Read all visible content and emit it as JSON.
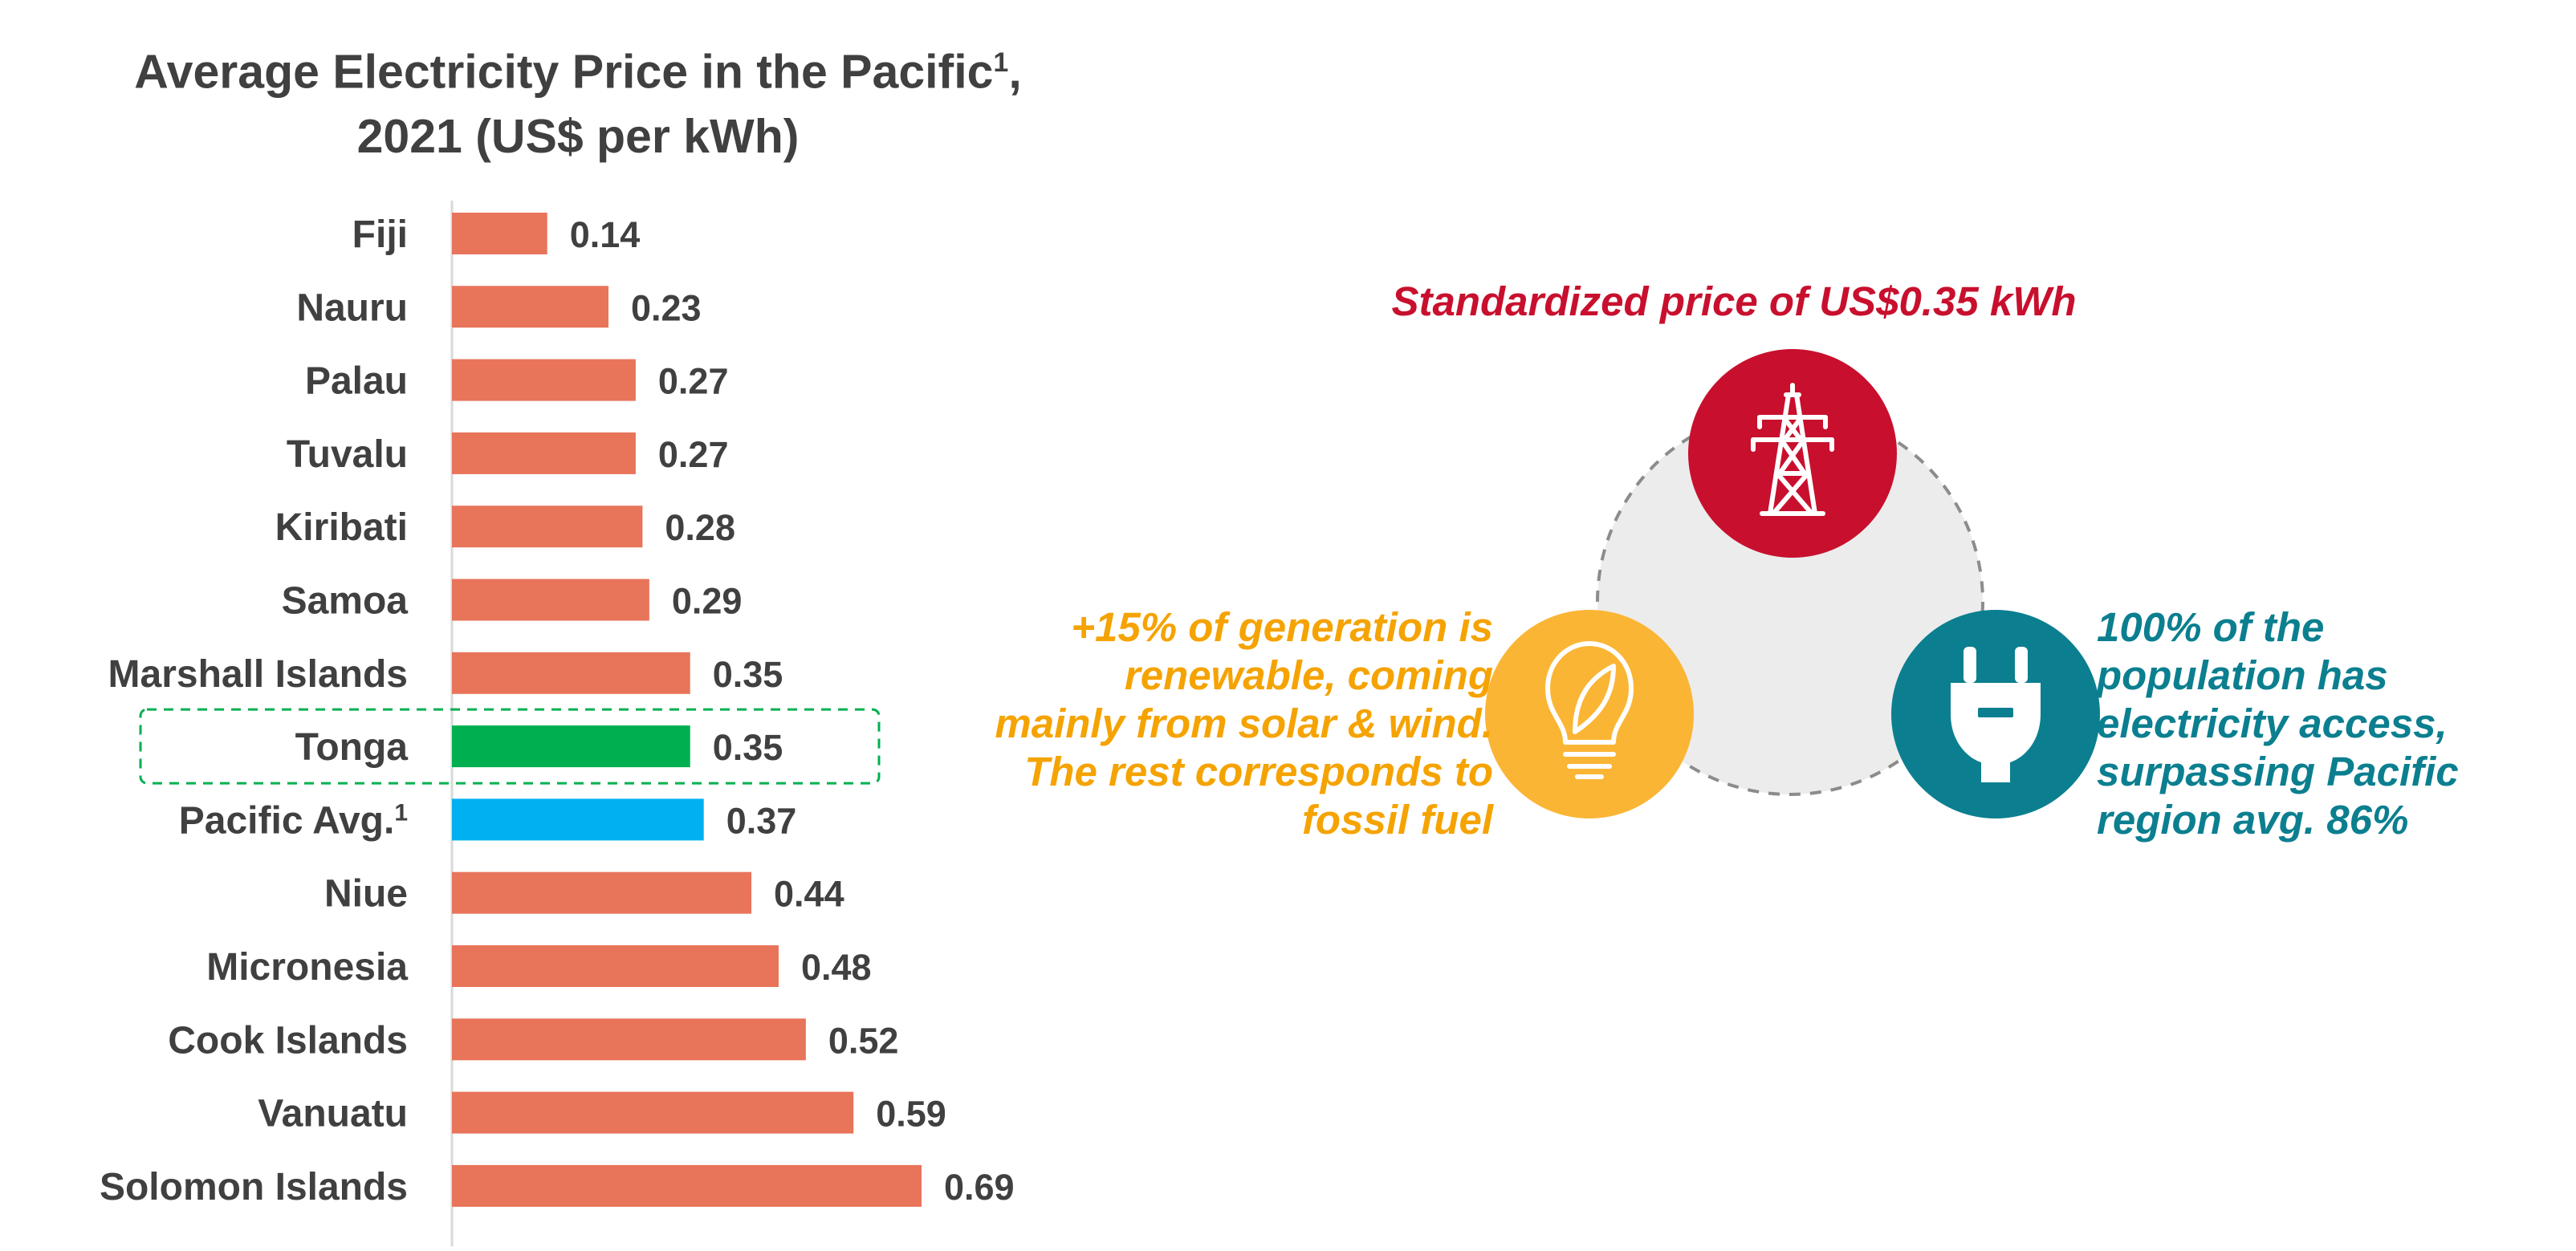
{
  "chart_data": {
    "type": "bar",
    "orientation": "horizontal",
    "title": [
      "Average Electricity Price in the Pacific¹,",
      "2021 (US$ per kWh)"
    ],
    "categories": [
      "Fiji",
      "Nauru",
      "Palau",
      "Tuvalu",
      "Kiribati",
      "Samoa",
      "Marshall Islands",
      "Tonga",
      "Pacific Avg.¹",
      "Niue",
      "Micronesia",
      "Cook Islands",
      "Vanuatu",
      "Solomon Islands"
    ],
    "values": [
      0.14,
      0.23,
      0.27,
      0.27,
      0.28,
      0.29,
      0.35,
      0.35,
      0.37,
      0.44,
      0.48,
      0.52,
      0.59,
      0.69
    ],
    "value_labels": [
      "0.14",
      "0.23",
      "0.27",
      "0.27",
      "0.28",
      "0.29",
      "0.35",
      "0.35",
      "0.37",
      "0.44",
      "0.48",
      "0.52",
      "0.59",
      "0.69"
    ],
    "colors": {
      "default": "#e8745a",
      "Tonga": "#00b050",
      "Pacific Avg.¹": "#00b0f0"
    },
    "highlight": "Tonga",
    "highlight_border": "#00b050",
    "xlim": [
      0,
      0.69
    ],
    "grid": false,
    "legend": "none"
  },
  "diagram": {
    "top": {
      "icon": "transmission-tower-icon",
      "color": "#c8102e",
      "text_color": "#c8102e",
      "text": [
        "Standardized price of US$0.35 kWh"
      ]
    },
    "left": {
      "icon": "lightbulb-leaf-icon",
      "color": "#fbb535",
      "text_color": "#f5a300",
      "text": [
        "+15% of generation is",
        "renewable, coming",
        "mainly from solar & wind.",
        "The rest corresponds to",
        "fossil fuel"
      ]
    },
    "right": {
      "icon": "power-plug-icon",
      "color": "#0b7f8f",
      "text_color": "#0b7f8f",
      "text": [
        "100% of the",
        "population has",
        "electricity access,",
        "surpassing Pacific",
        "region avg. 86%"
      ]
    },
    "center_color": "#ececec",
    "ring_color": "#8c8c8c"
  }
}
